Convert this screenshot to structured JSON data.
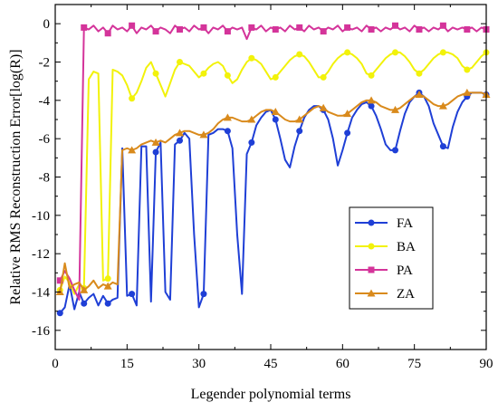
{
  "chart_data": {
    "type": "line",
    "xlabel": "Legender polynomial terms",
    "ylabel": "Relative RMS Reconstruction Error[log(R)]",
    "xlim": [
      0,
      90
    ],
    "ylim": [
      -17,
      1
    ],
    "xticks": [
      0,
      15,
      30,
      45,
      60,
      75,
      90
    ],
    "yticks": [
      0,
      -2,
      -4,
      -6,
      -8,
      -10,
      -12,
      -14,
      -16
    ],
    "legend_position": "bottom-right",
    "series": [
      {
        "name": "FA",
        "color": "#1f3fd6",
        "marker": "circle",
        "x": [
          1,
          2,
          3,
          4,
          5,
          6,
          7,
          8,
          9,
          10,
          11,
          12,
          13,
          14,
          15,
          16,
          17,
          18,
          19,
          20,
          21,
          22,
          23,
          24,
          25,
          26,
          27,
          28,
          29,
          30,
          31,
          32,
          33,
          34,
          35,
          36,
          37,
          38,
          39,
          40,
          41,
          42,
          43,
          44,
          45,
          46,
          47,
          48,
          49,
          50,
          51,
          52,
          53,
          54,
          55,
          56,
          57,
          58,
          59,
          60,
          61,
          62,
          63,
          64,
          65,
          66,
          67,
          68,
          69,
          70,
          71,
          72,
          73,
          74,
          75,
          76,
          77,
          78,
          79,
          80,
          81,
          82,
          83,
          84,
          85,
          86,
          87,
          88,
          89,
          90
        ],
        "y": [
          -15.1,
          -14.8,
          -13.6,
          -14.9,
          -14.0,
          -14.6,
          -14.3,
          -14.1,
          -14.7,
          -14.2,
          -14.6,
          -14.4,
          -14.3,
          -6.5,
          -14.2,
          -14.1,
          -14.7,
          -6.4,
          -6.4,
          -14.5,
          -6.7,
          -6.2,
          -14.0,
          -14.4,
          -6.3,
          -6.1,
          -5.7,
          -6.0,
          -11.0,
          -14.8,
          -14.1,
          -5.8,
          -5.7,
          -5.5,
          -5.5,
          -5.6,
          -6.5,
          -11.0,
          -14.1,
          -6.8,
          -6.2,
          -5.3,
          -4.9,
          -4.6,
          -4.5,
          -5.0,
          -6.0,
          -7.1,
          -7.5,
          -6.4,
          -5.6,
          -4.9,
          -4.5,
          -4.3,
          -4.3,
          -4.5,
          -5.0,
          -6.0,
          -7.4,
          -6.6,
          -5.7,
          -4.9,
          -4.5,
          -4.2,
          -4.1,
          -4.3,
          -4.8,
          -5.5,
          -6.3,
          -6.6,
          -6.6,
          -5.6,
          -4.7,
          -4.1,
          -3.8,
          -3.6,
          -3.8,
          -4.3,
          -5.2,
          -5.8,
          -6.4,
          -6.5,
          -5.4,
          -4.6,
          -4.1,
          -3.8,
          -3.6,
          -3.6,
          -3.6,
          -3.7
        ]
      },
      {
        "name": "BA",
        "color": "#f2f20a",
        "marker": "circle",
        "x": [
          1,
          2,
          3,
          4,
          5,
          6,
          7,
          8,
          9,
          10,
          11,
          12,
          13,
          14,
          15,
          16,
          17,
          18,
          19,
          20,
          21,
          22,
          23,
          24,
          25,
          26,
          27,
          28,
          29,
          30,
          31,
          32,
          33,
          34,
          35,
          36,
          37,
          38,
          39,
          40,
          41,
          42,
          43,
          44,
          45,
          46,
          47,
          48,
          49,
          50,
          51,
          52,
          53,
          54,
          55,
          56,
          57,
          58,
          59,
          60,
          61,
          62,
          63,
          64,
          65,
          66,
          67,
          68,
          69,
          70,
          71,
          72,
          73,
          74,
          75,
          76,
          77,
          78,
          79,
          80,
          81,
          82,
          83,
          84,
          85,
          86,
          87,
          88,
          89,
          90
        ],
        "y": [
          -13.9,
          -13.2,
          -13.5,
          -14.1,
          -13.6,
          -13.8,
          -2.9,
          -2.5,
          -2.6,
          -13.4,
          -13.3,
          -2.4,
          -2.5,
          -2.7,
          -3.2,
          -3.9,
          -3.6,
          -3.0,
          -2.3,
          -2.0,
          -2.6,
          -3.2,
          -3.8,
          -3.1,
          -2.4,
          -2.0,
          -2.1,
          -2.2,
          -2.5,
          -2.8,
          -2.6,
          -2.3,
          -2.1,
          -2.0,
          -2.2,
          -2.7,
          -3.1,
          -2.9,
          -2.4,
          -2.0,
          -1.8,
          -1.9,
          -2.1,
          -2.5,
          -2.9,
          -2.8,
          -2.5,
          -2.2,
          -1.9,
          -1.7,
          -1.6,
          -1.7,
          -2.0,
          -2.4,
          -2.8,
          -2.8,
          -2.5,
          -2.1,
          -1.8,
          -1.6,
          -1.5,
          -1.6,
          -1.8,
          -2.1,
          -2.6,
          -2.7,
          -2.4,
          -2.1,
          -1.8,
          -1.6,
          -1.5,
          -1.5,
          -1.7,
          -2.0,
          -2.4,
          -2.6,
          -2.4,
          -2.1,
          -1.8,
          -1.6,
          -1.5,
          -1.5,
          -1.6,
          -1.8,
          -2.2,
          -2.4,
          -2.3,
          -2.0,
          -1.7,
          -1.5
        ]
      },
      {
        "name": "PA",
        "color": "#d4349a",
        "marker": "square",
        "x": [
          1,
          2,
          3,
          4,
          5,
          6,
          7,
          8,
          9,
          10,
          11,
          12,
          13,
          14,
          15,
          16,
          17,
          18,
          19,
          20,
          21,
          22,
          23,
          24,
          25,
          26,
          27,
          28,
          29,
          30,
          31,
          32,
          33,
          34,
          35,
          36,
          37,
          38,
          39,
          40,
          41,
          42,
          43,
          44,
          45,
          46,
          47,
          48,
          49,
          50,
          51,
          52,
          53,
          54,
          55,
          56,
          57,
          58,
          59,
          60,
          61,
          62,
          63,
          64,
          65,
          66,
          67,
          68,
          69,
          70,
          71,
          72,
          73,
          74,
          75,
          76,
          77,
          78,
          79,
          80,
          81,
          82,
          83,
          84,
          85,
          86,
          87,
          88,
          89,
          90
        ],
        "y": [
          -13.4,
          -12.9,
          -13.3,
          -13.9,
          -14.4,
          -0.2,
          -0.3,
          -0.1,
          -0.4,
          -0.2,
          -0.5,
          -0.1,
          -0.3,
          -0.2,
          -0.4,
          -0.1,
          -0.5,
          -0.2,
          -0.3,
          -0.1,
          -0.4,
          -0.2,
          -0.3,
          -0.5,
          -0.1,
          -0.3,
          -0.2,
          -0.4,
          -0.1,
          -0.3,
          -0.2,
          -0.5,
          -0.2,
          -0.3,
          -0.1,
          -0.4,
          -0.2,
          -0.3,
          -0.2,
          -0.8,
          -0.2,
          -0.3,
          -0.1,
          -0.4,
          -0.2,
          -0.3,
          -0.2,
          -0.4,
          -0.1,
          -0.3,
          -0.2,
          -0.4,
          -0.1,
          -0.3,
          -0.2,
          -0.4,
          -0.2,
          -0.3,
          -0.1,
          -0.4,
          -0.2,
          -0.3,
          -0.2,
          -0.4,
          -0.1,
          -0.3,
          -0.2,
          -0.4,
          -0.2,
          -0.3,
          -0.1,
          -0.3,
          -0.2,
          -0.4,
          -0.1,
          -0.3,
          -0.2,
          -0.4,
          -0.2,
          -0.3,
          -0.1,
          -0.4,
          -0.2,
          -0.3,
          -0.2,
          -0.3,
          -0.2,
          -0.4,
          -0.2,
          -0.3
        ]
      },
      {
        "name": "ZA",
        "color": "#d98a1c",
        "marker": "triangle",
        "x": [
          1,
          2,
          3,
          4,
          5,
          6,
          7,
          8,
          9,
          10,
          11,
          12,
          13,
          14,
          15,
          16,
          17,
          18,
          19,
          20,
          21,
          22,
          23,
          24,
          25,
          26,
          27,
          28,
          29,
          30,
          31,
          32,
          33,
          34,
          35,
          36,
          37,
          38,
          39,
          40,
          41,
          42,
          43,
          44,
          45,
          46,
          47,
          48,
          49,
          50,
          51,
          52,
          53,
          54,
          55,
          56,
          57,
          58,
          59,
          60,
          61,
          62,
          63,
          64,
          65,
          66,
          67,
          68,
          69,
          70,
          71,
          72,
          73,
          74,
          75,
          76,
          77,
          78,
          79,
          80,
          81,
          82,
          83,
          84,
          85,
          86,
          87,
          88,
          89,
          90
        ],
        "y": [
          -14.0,
          -12.5,
          -13.8,
          -13.6,
          -13.5,
          -13.9,
          -13.7,
          -13.4,
          -13.8,
          -13.6,
          -13.7,
          -13.5,
          -13.6,
          -6.6,
          -6.5,
          -6.6,
          -6.5,
          -6.3,
          -6.2,
          -6.1,
          -6.2,
          -6.1,
          -6.2,
          -6.0,
          -5.8,
          -5.7,
          -5.6,
          -5.6,
          -5.7,
          -5.8,
          -5.8,
          -5.7,
          -5.5,
          -5.2,
          -5.0,
          -4.9,
          -4.9,
          -5.0,
          -5.1,
          -5.1,
          -5.0,
          -4.8,
          -4.6,
          -4.5,
          -4.5,
          -4.6,
          -4.8,
          -5.0,
          -5.1,
          -5.1,
          -5.0,
          -4.8,
          -4.6,
          -4.4,
          -4.3,
          -4.4,
          -4.6,
          -4.7,
          -4.8,
          -4.8,
          -4.7,
          -4.5,
          -4.3,
          -4.1,
          -4.0,
          -4.0,
          -4.1,
          -4.3,
          -4.4,
          -4.5,
          -4.5,
          -4.4,
          -4.2,
          -4.0,
          -3.8,
          -3.7,
          -3.8,
          -4.0,
          -4.2,
          -4.3,
          -4.3,
          -4.2,
          -4.0,
          -3.8,
          -3.7,
          -3.6,
          -3.6,
          -3.6,
          -3.6,
          -3.7
        ]
      }
    ]
  }
}
